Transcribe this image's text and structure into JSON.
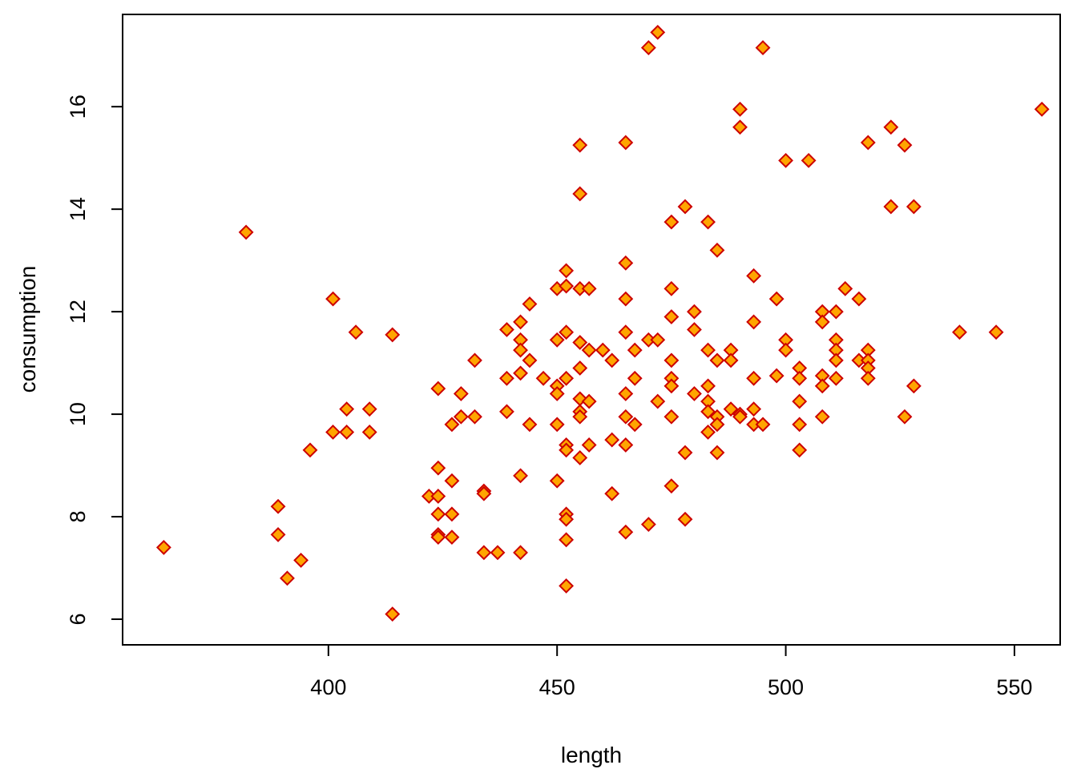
{
  "chart_data": {
    "type": "scatter",
    "xlabel": "length",
    "ylabel": "consumption",
    "xlim": [
      355,
      560
    ],
    "ylim": [
      5.5,
      17.8
    ],
    "x_ticks": [
      400,
      450,
      500,
      550
    ],
    "y_ticks": [
      6,
      8,
      10,
      12,
      14,
      16
    ],
    "grid": false,
    "marker": {
      "shape": "diamond",
      "fill": "#FFA500",
      "stroke": "#CC0000"
    },
    "points": [
      [
        364,
        7.4
      ],
      [
        382,
        13.55
      ],
      [
        389,
        8.2
      ],
      [
        389,
        7.65
      ],
      [
        391,
        6.8
      ],
      [
        394,
        7.15
      ],
      [
        396,
        9.3
      ],
      [
        401,
        12.25
      ],
      [
        401,
        9.65
      ],
      [
        404,
        10.1
      ],
      [
        404,
        9.65
      ],
      [
        406,
        11.6
      ],
      [
        409,
        10.1
      ],
      [
        409,
        9.65
      ],
      [
        414,
        11.55
      ],
      [
        414,
        6.1
      ],
      [
        422,
        8.4
      ],
      [
        424,
        10.5
      ],
      [
        424,
        8.95
      ],
      [
        424,
        8.4
      ],
      [
        424,
        8.05
      ],
      [
        424,
        7.65
      ],
      [
        424,
        7.6
      ],
      [
        427,
        9.8
      ],
      [
        427,
        8.7
      ],
      [
        427,
        8.05
      ],
      [
        427,
        7.6
      ],
      [
        429,
        10.4
      ],
      [
        429,
        9.95
      ],
      [
        432,
        11.05
      ],
      [
        432,
        9.95
      ],
      [
        434,
        8.5
      ],
      [
        434,
        8.45
      ],
      [
        434,
        7.3
      ],
      [
        437,
        7.3
      ],
      [
        439,
        11.65
      ],
      [
        439,
        10.7
      ],
      [
        439,
        10.05
      ],
      [
        442,
        11.8
      ],
      [
        442,
        11.45
      ],
      [
        442,
        11.25
      ],
      [
        442,
        10.8
      ],
      [
        442,
        8.8
      ],
      [
        442,
        7.3
      ],
      [
        444,
        12.15
      ],
      [
        444,
        11.05
      ],
      [
        444,
        9.8
      ],
      [
        447,
        10.7
      ],
      [
        450,
        12.45
      ],
      [
        450,
        11.45
      ],
      [
        450,
        10.55
      ],
      [
        450,
        10.4
      ],
      [
        450,
        9.8
      ],
      [
        450,
        8.7
      ],
      [
        452,
        12.8
      ],
      [
        452,
        12.5
      ],
      [
        452,
        11.6
      ],
      [
        452,
        10.7
      ],
      [
        452,
        9.4
      ],
      [
        452,
        9.3
      ],
      [
        452,
        8.05
      ],
      [
        452,
        7.95
      ],
      [
        452,
        7.55
      ],
      [
        452,
        6.65
      ],
      [
        455,
        15.25
      ],
      [
        455,
        14.3
      ],
      [
        455,
        12.45
      ],
      [
        455,
        11.4
      ],
      [
        455,
        10.9
      ],
      [
        455,
        10.3
      ],
      [
        455,
        10.05
      ],
      [
        455,
        9.95
      ],
      [
        455,
        9.15
      ],
      [
        457,
        12.45
      ],
      [
        457,
        11.25
      ],
      [
        457,
        10.25
      ],
      [
        457,
        9.4
      ],
      [
        460,
        11.25
      ],
      [
        462,
        11.05
      ],
      [
        462,
        9.5
      ],
      [
        462,
        8.45
      ],
      [
        465,
        15.3
      ],
      [
        465,
        12.95
      ],
      [
        465,
        12.25
      ],
      [
        465,
        11.6
      ],
      [
        465,
        10.4
      ],
      [
        465,
        9.95
      ],
      [
        465,
        9.4
      ],
      [
        465,
        7.7
      ],
      [
        467,
        11.25
      ],
      [
        467,
        10.7
      ],
      [
        467,
        9.8
      ],
      [
        470,
        17.15
      ],
      [
        470,
        11.45
      ],
      [
        470,
        7.85
      ],
      [
        472,
        17.45
      ],
      [
        472,
        11.45
      ],
      [
        472,
        10.25
      ],
      [
        475,
        13.75
      ],
      [
        475,
        12.45
      ],
      [
        475,
        11.9
      ],
      [
        475,
        11.05
      ],
      [
        475,
        10.7
      ],
      [
        475,
        10.55
      ],
      [
        475,
        9.95
      ],
      [
        475,
        8.6
      ],
      [
        478,
        14.05
      ],
      [
        478,
        9.25
      ],
      [
        478,
        7.95
      ],
      [
        480,
        12.0
      ],
      [
        480,
        11.65
      ],
      [
        480,
        10.4
      ],
      [
        483,
        13.75
      ],
      [
        483,
        11.25
      ],
      [
        483,
        10.55
      ],
      [
        483,
        10.25
      ],
      [
        483,
        10.05
      ],
      [
        483,
        9.65
      ],
      [
        485,
        13.2
      ],
      [
        485,
        11.05
      ],
      [
        485,
        9.95
      ],
      [
        485,
        9.8
      ],
      [
        485,
        9.25
      ],
      [
        488,
        11.25
      ],
      [
        488,
        11.05
      ],
      [
        488,
        10.1
      ],
      [
        490,
        15.95
      ],
      [
        490,
        15.6
      ],
      [
        490,
        10.0
      ],
      [
        490,
        9.95
      ],
      [
        493,
        12.7
      ],
      [
        493,
        11.8
      ],
      [
        493,
        10.7
      ],
      [
        493,
        10.1
      ],
      [
        493,
        9.8
      ],
      [
        495,
        17.15
      ],
      [
        495,
        9.8
      ],
      [
        498,
        12.25
      ],
      [
        498,
        10.75
      ],
      [
        500,
        14.95
      ],
      [
        500,
        11.45
      ],
      [
        500,
        11.25
      ],
      [
        503,
        10.9
      ],
      [
        503,
        10.7
      ],
      [
        503,
        10.25
      ],
      [
        503,
        9.8
      ],
      [
        503,
        9.3
      ],
      [
        505,
        14.95
      ],
      [
        508,
        12.0
      ],
      [
        508,
        11.8
      ],
      [
        508,
        10.75
      ],
      [
        508,
        10.55
      ],
      [
        508,
        9.95
      ],
      [
        511,
        12.0
      ],
      [
        511,
        11.45
      ],
      [
        511,
        11.25
      ],
      [
        511,
        11.05
      ],
      [
        511,
        10.7
      ],
      [
        513,
        12.45
      ],
      [
        516,
        12.25
      ],
      [
        516,
        11.05
      ],
      [
        518,
        15.3
      ],
      [
        518,
        11.25
      ],
      [
        518,
        11.05
      ],
      [
        518,
        10.9
      ],
      [
        518,
        10.7
      ],
      [
        523,
        15.6
      ],
      [
        523,
        14.05
      ],
      [
        526,
        15.25
      ],
      [
        526,
        9.95
      ],
      [
        528,
        14.05
      ],
      [
        528,
        10.55
      ],
      [
        538,
        11.6
      ],
      [
        546,
        11.6
      ],
      [
        556,
        15.95
      ]
    ]
  }
}
